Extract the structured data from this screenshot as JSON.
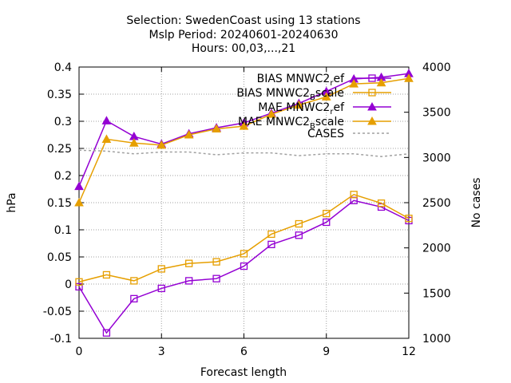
{
  "chart_data": {
    "type": "line",
    "title_lines": [
      "Selection: SwedenCoast using    13 stations",
      "Mslp   Period: 20240601-20240630",
      "Hours: 00,03,...,21"
    ],
    "xlabel": "Forecast length",
    "ylabel": "hPa",
    "y2label": "No cases",
    "xlim": [
      0,
      12
    ],
    "ylim": [
      -0.1,
      0.4
    ],
    "y2lim": [
      1000,
      4000
    ],
    "x_ticks": [
      "0",
      "3",
      "6",
      "9",
      "12"
    ],
    "y_ticks": [
      "-0.1",
      "-0.05",
      "0",
      "0.05",
      "0.1",
      "0.15",
      "0.2",
      "0.25",
      "0.3",
      "0.35",
      "0.4"
    ],
    "y2_ticks": [
      "1000",
      "1500",
      "2000",
      "2500",
      "3000",
      "3500",
      "4000"
    ],
    "grid": true,
    "legend_position": "top-right",
    "x": [
      0,
      1,
      2,
      3,
      4,
      5,
      6,
      7,
      8,
      9,
      10,
      11,
      12
    ],
    "series": [
      {
        "name_main": "BIAS MNWC2",
        "name_sub": "r",
        "name_tail": "ef",
        "axis": "y",
        "color": "#9400d3",
        "marker": "square",
        "dash": false,
        "values": [
          -0.005,
          -0.09,
          -0.027,
          -0.008,
          0.006,
          0.01,
          0.033,
          0.073,
          0.09,
          0.114,
          0.154,
          0.142,
          0.117
        ]
      },
      {
        "name_main": "BIAS MNWC2",
        "name_sub": "B",
        "name_tail": "scale",
        "axis": "y",
        "color": "#e69f00",
        "marker": "square",
        "dash": false,
        "values": [
          0.004,
          0.017,
          0.006,
          0.028,
          0.038,
          0.041,
          0.056,
          0.092,
          0.111,
          0.13,
          0.165,
          0.149,
          0.121
        ]
      },
      {
        "name_main": "MAE MNWC2",
        "name_sub": "r",
        "name_tail": "ef",
        "axis": "y",
        "color": "#9400d3",
        "marker": "triangle",
        "dash": false,
        "values": [
          0.18,
          0.301,
          0.272,
          0.258,
          0.277,
          0.288,
          0.297,
          0.315,
          0.333,
          0.355,
          0.378,
          0.381,
          0.388
        ]
      },
      {
        "name_main": "MAE MNWC2",
        "name_sub": "B",
        "name_tail": "scale",
        "axis": "y",
        "color": "#e69f00",
        "marker": "triangle",
        "dash": false,
        "values": [
          0.15,
          0.267,
          0.26,
          0.256,
          0.275,
          0.286,
          0.291,
          0.313,
          0.33,
          0.345,
          0.369,
          0.371,
          0.379
        ]
      },
      {
        "name_main": "CASES",
        "name_sub": "",
        "name_tail": "",
        "axis": "y2",
        "color": "#a0a0a0",
        "marker": "none",
        "dash": true,
        "values": [
          3080,
          3070,
          3040,
          3060,
          3060,
          3030,
          3050,
          3050,
          3020,
          3040,
          3040,
          3010,
          3040
        ]
      }
    ]
  }
}
